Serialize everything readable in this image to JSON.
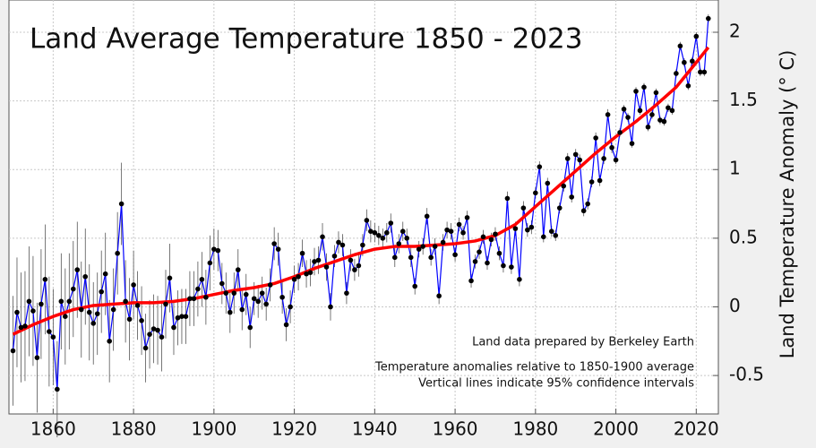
{
  "chart_data": {
    "type": "line",
    "title": "Land Average Temperature 1850 - 2023",
    "y_label": "Land Temperature Anomaly (° C)",
    "annotations": [
      "Land data prepared by Berkeley Earth",
      "Temperature anomalies relative to 1850-1900 average",
      "Vertical lines indicate 95% confidence intervals"
    ],
    "xlim": [
      1849,
      2025.5
    ],
    "ylim": [
      -0.78,
      2.235
    ],
    "xticks": [
      1860,
      1880,
      1900,
      1920,
      1940,
      1960,
      1980,
      2000,
      2020
    ],
    "yticks": [
      -0.5,
      0,
      0.5,
      1,
      1.5,
      2
    ],
    "grid": true,
    "series": [
      {
        "color": "#0000ff",
        "x": [
          1850,
          1851,
          1852,
          1853,
          1854,
          1855,
          1856,
          1857,
          1858,
          1859,
          1860,
          1861,
          1862,
          1863,
          1864,
          1865,
          1866,
          1867,
          1868,
          1869,
          1870,
          1871,
          1872,
          1873,
          1874,
          1875,
          1876,
          1877,
          1878,
          1879,
          1880,
          1881,
          1882,
          1883,
          1884,
          1885,
          1886,
          1887,
          1888,
          1889,
          1890,
          1891,
          1892,
          1893,
          1894,
          1895,
          1896,
          1897,
          1898,
          1899,
          1900,
          1901,
          1902,
          1903,
          1904,
          1905,
          1906,
          1907,
          1908,
          1909,
          1910,
          1911,
          1912,
          1913,
          1914,
          1915,
          1916,
          1917,
          1918,
          1919,
          1920,
          1921,
          1922,
          1923,
          1924,
          1925,
          1926,
          1927,
          1928,
          1929,
          1930,
          1931,
          1932,
          1933,
          1934,
          1935,
          1936,
          1937,
          1938,
          1939,
          1940,
          1941,
          1942,
          1943,
          1944,
          1945,
          1946,
          1947,
          1948,
          1949,
          1950,
          1951,
          1952,
          1953,
          1954,
          1955,
          1956,
          1957,
          1958,
          1959,
          1960,
          1961,
          1962,
          1963,
          1964,
          1965,
          1966,
          1967,
          1968,
          1969,
          1970,
          1971,
          1972,
          1973,
          1974,
          1975,
          1976,
          1977,
          1978,
          1979,
          1980,
          1981,
          1982,
          1983,
          1984,
          1985,
          1986,
          1987,
          1988,
          1989,
          1990,
          1991,
          1992,
          1993,
          1994,
          1995,
          1996,
          1997,
          1998,
          1999,
          2000,
          2001,
          2002,
          2003,
          2004,
          2005,
          2006,
          2007,
          2008,
          2009,
          2010,
          2011,
          2012,
          2013,
          2014,
          2015,
          2016,
          2017,
          2018,
          2019,
          2020,
          2021,
          2022,
          2023
        ],
        "values": [
          -0.32,
          -0.04,
          -0.15,
          -0.14,
          0.04,
          -0.03,
          -0.37,
          0.02,
          0.2,
          -0.18,
          -0.22,
          -0.6,
          0.04,
          -0.07,
          0.04,
          0.13,
          0.27,
          -0.02,
          0.22,
          -0.04,
          -0.12,
          -0.05,
          0.11,
          0.24,
          -0.25,
          -0.02,
          0.39,
          0.75,
          0.04,
          -0.09,
          0.16,
          0.01,
          -0.1,
          -0.3,
          -0.2,
          -0.16,
          -0.17,
          -0.22,
          0.02,
          0.21,
          -0.15,
          -0.08,
          -0.07,
          -0.07,
          0.06,
          0.06,
          0.13,
          0.2,
          0.07,
          0.32,
          0.42,
          0.41,
          0.17,
          0.1,
          -0.04,
          0.1,
          0.27,
          -0.02,
          0.09,
          -0.15,
          0.06,
          0.04,
          0.1,
          0.02,
          0.16,
          0.46,
          0.42,
          0.07,
          -0.13,
          0.0,
          0.2,
          0.22,
          0.39,
          0.24,
          0.25,
          0.33,
          0.34,
          0.51,
          0.29,
          0.0,
          0.37,
          0.47,
          0.45,
          0.1,
          0.34,
          0.27,
          0.3,
          0.45,
          0.63,
          0.55,
          0.54,
          0.52,
          0.5,
          0.54,
          0.61,
          0.36,
          0.46,
          0.55,
          0.5,
          0.36,
          0.15,
          0.42,
          0.44,
          0.66,
          0.36,
          0.44,
          0.08,
          0.47,
          0.56,
          0.55,
          0.38,
          0.6,
          0.54,
          0.65,
          0.19,
          0.33,
          0.4,
          0.51,
          0.32,
          0.49,
          0.53,
          0.39,
          0.3,
          0.79,
          0.29,
          0.57,
          0.2,
          0.72,
          0.56,
          0.58,
          0.83,
          1.02,
          0.51,
          0.9,
          0.55,
          0.52,
          0.72,
          0.88,
          1.08,
          0.8,
          1.11,
          1.07,
          0.7,
          0.75,
          0.91,
          1.23,
          0.92,
          1.08,
          1.4,
          1.16,
          1.07,
          1.27,
          1.44,
          1.38,
          1.19,
          1.57,
          1.43,
          1.6,
          1.31,
          1.4,
          1.56,
          1.36,
          1.35,
          1.45,
          1.43,
          1.7,
          1.9,
          1.78,
          1.61,
          1.79,
          1.97,
          1.71,
          1.71,
          2.1
        ],
        "errors": [
          0.4,
          0.4,
          0.4,
          0.4,
          0.4,
          0.4,
          0.4,
          0.4,
          0.4,
          0.4,
          0.35,
          0.35,
          0.35,
          0.35,
          0.35,
          0.35,
          0.35,
          0.35,
          0.35,
          0.35,
          0.3,
          0.3,
          0.3,
          0.3,
          0.3,
          0.3,
          0.3,
          0.3,
          0.3,
          0.3,
          0.25,
          0.25,
          0.25,
          0.25,
          0.25,
          0.25,
          0.25,
          0.25,
          0.25,
          0.25,
          0.2,
          0.2,
          0.2,
          0.2,
          0.2,
          0.2,
          0.2,
          0.2,
          0.2,
          0.2,
          0.15,
          0.15,
          0.15,
          0.15,
          0.15,
          0.15,
          0.15,
          0.15,
          0.15,
          0.15,
          0.12,
          0.12,
          0.12,
          0.12,
          0.12,
          0.12,
          0.12,
          0.12,
          0.12,
          0.12,
          0.1,
          0.1,
          0.1,
          0.1,
          0.1,
          0.1,
          0.1,
          0.1,
          0.1,
          0.1,
          0.08,
          0.08,
          0.08,
          0.08,
          0.08,
          0.08,
          0.08,
          0.08,
          0.08,
          0.08,
          0.07,
          0.07,
          0.07,
          0.07,
          0.07,
          0.07,
          0.07,
          0.07,
          0.07,
          0.07,
          0.06,
          0.06,
          0.06,
          0.06,
          0.06,
          0.06,
          0.06,
          0.06,
          0.06,
          0.06,
          0.05,
          0.05,
          0.05,
          0.05,
          0.05,
          0.05,
          0.05,
          0.05,
          0.05,
          0.05,
          0.05,
          0.05,
          0.05,
          0.05,
          0.05,
          0.05,
          0.05,
          0.05,
          0.05,
          0.05,
          0.04,
          0.04,
          0.04,
          0.04,
          0.04,
          0.04,
          0.04,
          0.04,
          0.04,
          0.04,
          0.04,
          0.04,
          0.04,
          0.04,
          0.04,
          0.04,
          0.04,
          0.04,
          0.04,
          0.04,
          0.03,
          0.03,
          0.03,
          0.03,
          0.03,
          0.03,
          0.03,
          0.03,
          0.03,
          0.03,
          0.03,
          0.03,
          0.03,
          0.03,
          0.03,
          0.03,
          0.03,
          0.03,
          0.03,
          0.03,
          0.03,
          0.03,
          0.03,
          0.03
        ]
      },
      {
        "color": "#ff0000",
        "x": [
          1850,
          1855,
          1860,
          1865,
          1870,
          1875,
          1880,
          1885,
          1890,
          1895,
          1900,
          1905,
          1910,
          1915,
          1920,
          1925,
          1930,
          1935,
          1940,
          1945,
          1950,
          1955,
          1960,
          1965,
          1970,
          1975,
          1980,
          1985,
          1990,
          1995,
          2000,
          2005,
          2010,
          2015,
          2020,
          2023
        ],
        "values": [
          -0.2,
          -0.13,
          -0.07,
          -0.02,
          0.01,
          0.02,
          0.03,
          0.03,
          0.04,
          0.06,
          0.09,
          0.12,
          0.14,
          0.17,
          0.22,
          0.28,
          0.33,
          0.38,
          0.42,
          0.44,
          0.44,
          0.45,
          0.46,
          0.48,
          0.52,
          0.6,
          0.73,
          0.86,
          0.99,
          1.12,
          1.24,
          1.35,
          1.47,
          1.6,
          1.78,
          1.89
        ]
      }
    ]
  }
}
